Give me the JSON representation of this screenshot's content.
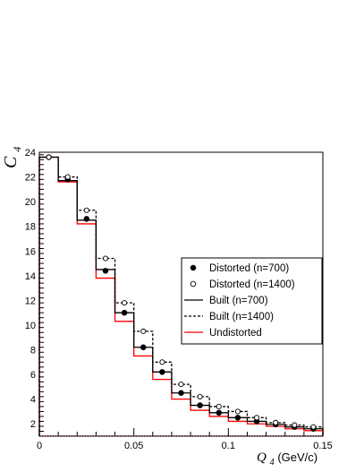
{
  "chart_data": {
    "type": "step",
    "title": "",
    "ylabel": {
      "symbol": "C",
      "sub": "4"
    },
    "xlabel": {
      "symbol": "Q",
      "sub": "4",
      "unit": " (GeV/c)"
    },
    "xlim": [
      0,
      0.15
    ],
    "ylim": [
      1,
      24
    ],
    "x_ticks": [
      "0",
      "0.05",
      "0.1",
      "0.15"
    ],
    "x_tick_values": [
      0,
      0.05,
      0.1,
      0.15
    ],
    "y_ticks": [
      "2",
      "4",
      "6",
      "8",
      "10",
      "12",
      "14",
      "16",
      "18",
      "20",
      "22",
      "24"
    ],
    "y_tick_values": [
      2,
      4,
      6,
      8,
      10,
      12,
      14,
      16,
      18,
      20,
      22,
      24
    ],
    "bin_edges": [
      0,
      0.01,
      0.02,
      0.03,
      0.04,
      0.05,
      0.06,
      0.07,
      0.08,
      0.09,
      0.1,
      0.11,
      0.12,
      0.13,
      0.14,
      0.15
    ],
    "bin_centers": [
      0.005,
      0.015,
      0.025,
      0.035,
      0.045,
      0.055,
      0.065,
      0.075,
      0.085,
      0.095,
      0.105,
      0.115,
      0.125,
      0.135,
      0.145
    ],
    "series": [
      {
        "name": "Distorted (n=700)",
        "style": "filled-marker",
        "values": [
          23.6,
          21.8,
          18.6,
          14.4,
          11.0,
          8.2,
          6.2,
          4.5,
          3.5,
          2.9,
          2.5,
          2.2,
          1.95,
          1.75,
          1.6
        ]
      },
      {
        "name": "Distorted (n=1400)",
        "style": "open-marker",
        "values": [
          23.6,
          22.0,
          19.3,
          15.4,
          11.8,
          9.5,
          7.0,
          5.2,
          4.2,
          3.4,
          3.0,
          2.5,
          2.1,
          1.9,
          1.75
        ]
      },
      {
        "name": "Built (n=700)",
        "style": "solid-line",
        "color": "#000000",
        "values": [
          23.6,
          21.7,
          18.5,
          14.5,
          11.0,
          8.2,
          6.2,
          4.5,
          3.5,
          2.9,
          2.5,
          2.2,
          1.95,
          1.75,
          1.6
        ]
      },
      {
        "name": "Built (n=1400)",
        "style": "dashed-line",
        "color": "#000000",
        "values": [
          23.6,
          22.0,
          19.3,
          15.4,
          11.8,
          9.5,
          7.0,
          5.2,
          4.2,
          3.4,
          3.0,
          2.5,
          2.1,
          1.9,
          1.75
        ]
      },
      {
        "name": "Undistorted",
        "style": "solid-line",
        "color": "#ff0000",
        "values": [
          23.6,
          21.6,
          18.2,
          13.8,
          10.3,
          7.5,
          5.6,
          4.0,
          3.1,
          2.6,
          2.2,
          2.0,
          1.8,
          1.6,
          1.45
        ]
      }
    ],
    "reference_line": {
      "y": 1.0,
      "color": "#ff0000",
      "style": "dotted"
    },
    "legend": {
      "placement": "middle-right",
      "entries": [
        "Distorted (n=700)",
        "Distorted (n=1400)",
        "Built (n=700)",
        "Built (n=1400)",
        "Undistorted"
      ]
    },
    "grid": false
  }
}
